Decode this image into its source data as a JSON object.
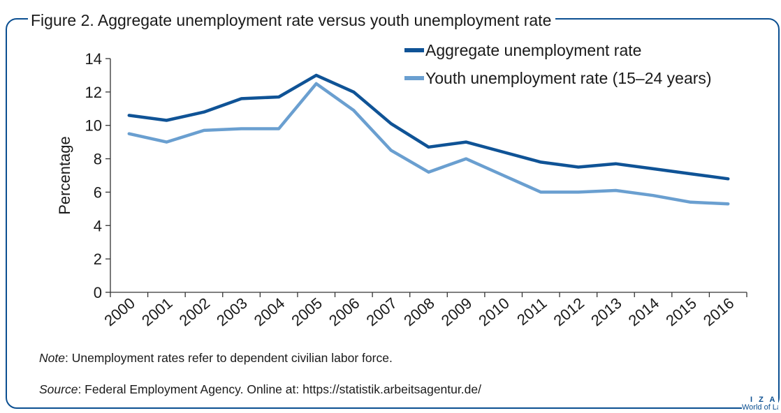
{
  "figure": {
    "title": "Figure 2. Aggregate unemployment rate versus youth unemployment rate",
    "note_label": "Note",
    "note_text": ": Unemployment rates refer to dependent civilian labor force.",
    "source_label": "Source",
    "source_text": ": Federal Employment Agency. Online at: https://statistik.arbeitsagentur.de/",
    "logo_top": "I Z A",
    "logo_bottom": "World of Labor"
  },
  "colors": {
    "frame": "#0b4f91",
    "aggregate": "#0f5396",
    "youth": "#6a9fd0",
    "axis": "#333333"
  },
  "chart_data": {
    "type": "line",
    "title": "",
    "xlabel": "",
    "ylabel": "Percentage",
    "categories": [
      "2000",
      "2001",
      "2002",
      "2003",
      "2004",
      "2005",
      "2006",
      "2007",
      "2008",
      "2009",
      "2010",
      "2011",
      "2012",
      "2013",
      "2014",
      "2015",
      "2016"
    ],
    "ylim": [
      0,
      14
    ],
    "yticks": [
      0,
      2,
      4,
      6,
      8,
      10,
      12,
      14
    ],
    "grid": false,
    "legend_position": "top-right",
    "series": [
      {
        "name": "Aggregate unemployment rate",
        "color": "#0f5396",
        "values": [
          10.6,
          10.3,
          10.8,
          11.6,
          11.7,
          13.0,
          12.0,
          10.1,
          8.7,
          9.0,
          8.4,
          7.8,
          7.5,
          7.7,
          7.4,
          7.1,
          6.8
        ]
      },
      {
        "name": "Youth unemployment rate (15–24 years)",
        "color": "#6a9fd0",
        "values": [
          9.5,
          9.0,
          9.7,
          9.8,
          9.8,
          12.5,
          10.9,
          8.5,
          7.2,
          8.0,
          7.0,
          6.0,
          6.0,
          6.1,
          5.8,
          5.4,
          5.3
        ]
      }
    ]
  }
}
